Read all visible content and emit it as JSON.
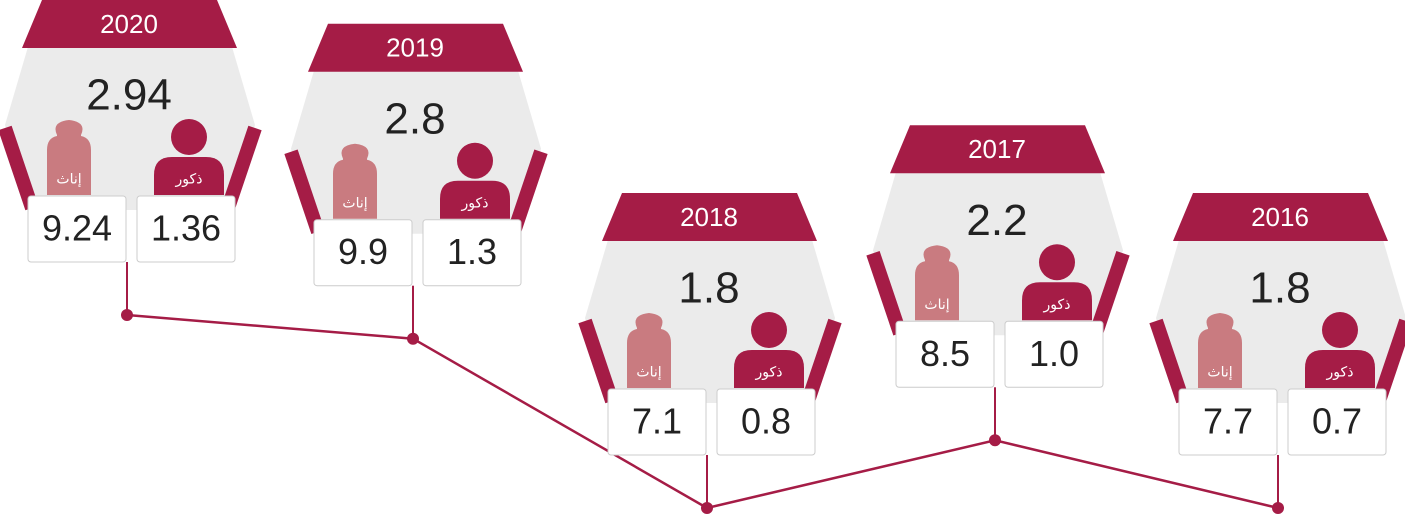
{
  "chart_data": {
    "type": "line",
    "categories": [
      "2020",
      "2019",
      "2018",
      "2017",
      "2016"
    ],
    "values": [
      2.94,
      2.8,
      1.8,
      2.2,
      1.8
    ],
    "color": "#a51c46",
    "series": [
      {
        "name": "إناث",
        "color": "#c97b80",
        "values": [
          9.24,
          9.9,
          7.1,
          8.5,
          7.7
        ]
      },
      {
        "name": "ذكور",
        "color": "#a51c46",
        "values": [
          1.36,
          1.3,
          0.8,
          1.0,
          0.7
        ],
        "value_labels": [
          "1.36",
          "1.3",
          "0.8",
          "1.0",
          "0.7"
        ]
      }
    ]
  }
}
